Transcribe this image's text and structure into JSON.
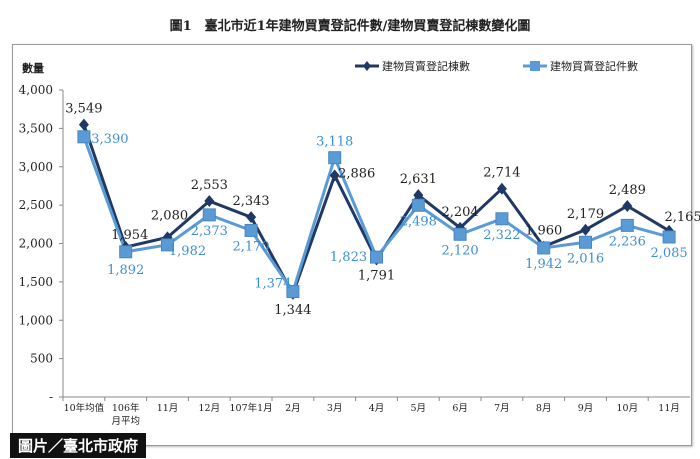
{
  "chart_data": {
    "type": "line",
    "title": "圖1　臺北市近1年建物買賣登記件數/建物買賣登記棟數變化圖",
    "ylabel": "數量",
    "xlabel": "",
    "ylim": [
      0,
      4000
    ],
    "yticks": [
      "-",
      "500",
      "1,000",
      "1,500",
      "2,000",
      "2,500",
      "3,000",
      "3,500",
      "4,000"
    ],
    "categories": [
      "10年均值",
      "106年月平均",
      "11月",
      "12月",
      "107年1月",
      "2月",
      "3月",
      "4月",
      "5月",
      "6月",
      "7月",
      "8月",
      "9月",
      "10月",
      "11月"
    ],
    "legend_position": "top-right",
    "grid": false,
    "series": [
      {
        "name": "建物買賣登記棟數",
        "color": "#1f3864",
        "marker": "diamond",
        "values": [
          3549,
          1954,
          2080,
          2553,
          2343,
          1344,
          2886,
          1791,
          2631,
          2204,
          2714,
          1960,
          2179,
          2489,
          2165
        ]
      },
      {
        "name": "建物買賣登記件數",
        "color": "#5b9bd5",
        "marker": "square",
        "values": [
          3390,
          1892,
          1982,
          2373,
          2170,
          1374,
          3118,
          1823,
          2498,
          2120,
          2322,
          1942,
          2016,
          2236,
          2085
        ]
      }
    ]
  },
  "credit": "圖片／臺北市政府"
}
